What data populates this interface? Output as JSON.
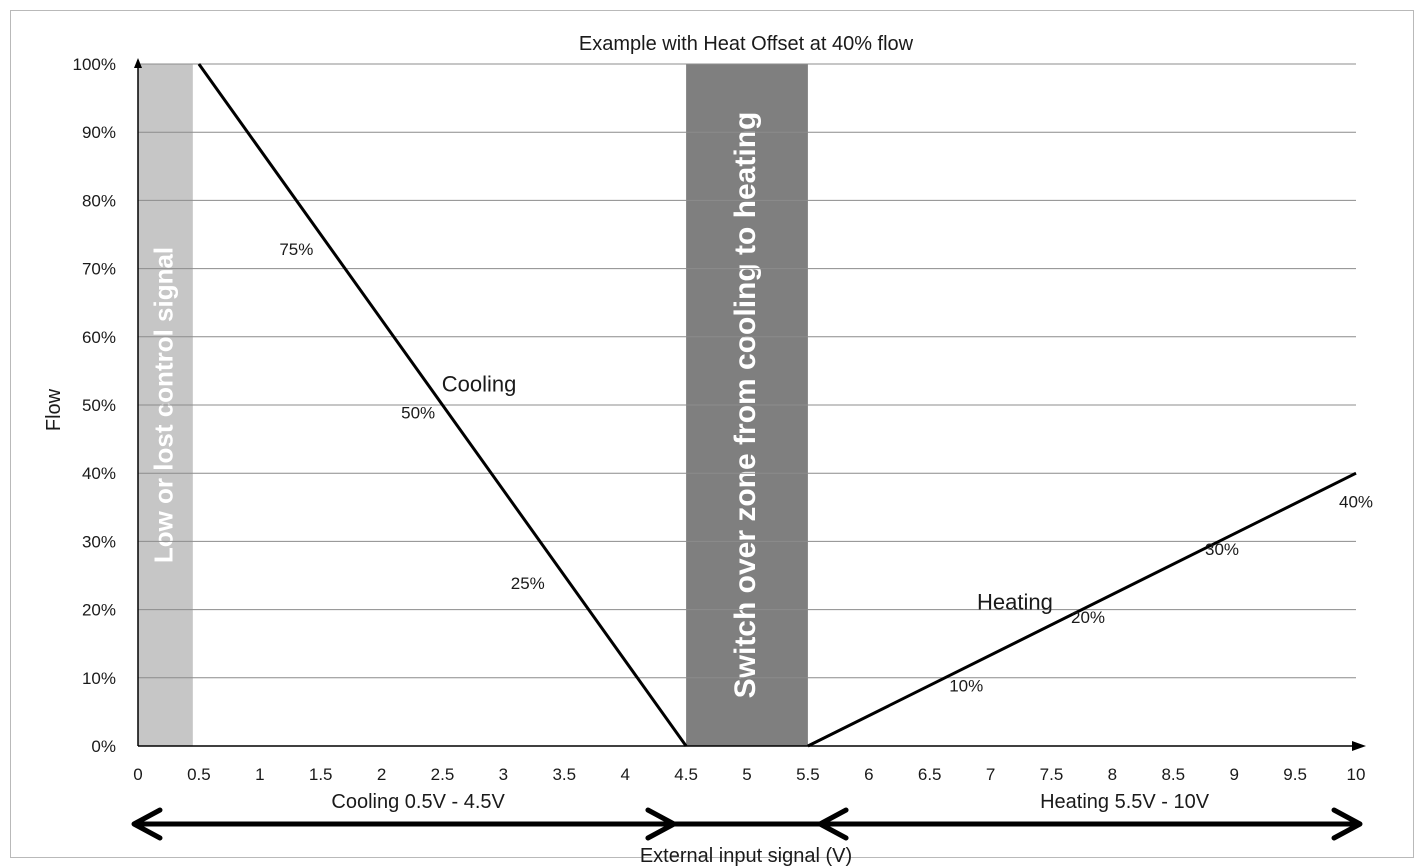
{
  "chart_data": {
    "type": "line",
    "title": "Example with Heat Offset at 40% flow",
    "xlabel": "External input signal (V)",
    "ylabel": "Flow",
    "xlim": [
      0,
      10
    ],
    "ylim": [
      0,
      100
    ],
    "x_ticks": [
      "0",
      "0.5",
      "1",
      "1.5",
      "2",
      "2.5",
      "3",
      "3.5",
      "4",
      "4.5",
      "5",
      "5.5",
      "6",
      "6.5",
      "7",
      "7.5",
      "8",
      "8.5",
      "9",
      "9.5",
      "10"
    ],
    "y_ticks": [
      "0%",
      "10%",
      "20%",
      "30%",
      "40%",
      "50%",
      "60%",
      "70%",
      "80%",
      "90%",
      "100%"
    ],
    "grid": "horizontal",
    "series": [
      {
        "name": "Cooling",
        "x": [
          0.5,
          4.5
        ],
        "y": [
          100,
          0
        ]
      },
      {
        "name": "Heating",
        "x": [
          5.5,
          10
        ],
        "y": [
          0,
          40
        ]
      }
    ],
    "bands": [
      {
        "x": [
          0,
          0.45
        ],
        "label": "Low or lost control signal",
        "color": "#c6c6c6"
      },
      {
        "x": [
          4.5,
          5.5
        ],
        "label": "Switch over zone from cooling to heating",
        "color": "#7f7f7f"
      }
    ],
    "point_labels": [
      {
        "text": "75%",
        "x": 1.3,
        "y": 72
      },
      {
        "text": "50%",
        "x": 2.3,
        "y": 48
      },
      {
        "text": "25%",
        "x": 3.2,
        "y": 23
      },
      {
        "text": "10%",
        "x": 6.8,
        "y": 8
      },
      {
        "text": "20%",
        "x": 7.8,
        "y": 18
      },
      {
        "text": "30%",
        "x": 8.9,
        "y": 28
      },
      {
        "text": "40%",
        "x": 10.0,
        "y": 35
      }
    ],
    "annotations": [
      {
        "text": "Cooling",
        "x": 2.8,
        "y": 52
      },
      {
        "text": "Heating",
        "x": 7.2,
        "y": 20
      }
    ],
    "ranges": [
      {
        "label": "Cooling 0.5V - 4.5V",
        "from": 0,
        "to": 5.5
      },
      {
        "label": "Heating 5.5V - 10V",
        "from": 5.5,
        "to": 10
      }
    ],
    "colors": {
      "line": "#000000",
      "grid": "#8c8c8c",
      "arrow": "#000000"
    }
  }
}
